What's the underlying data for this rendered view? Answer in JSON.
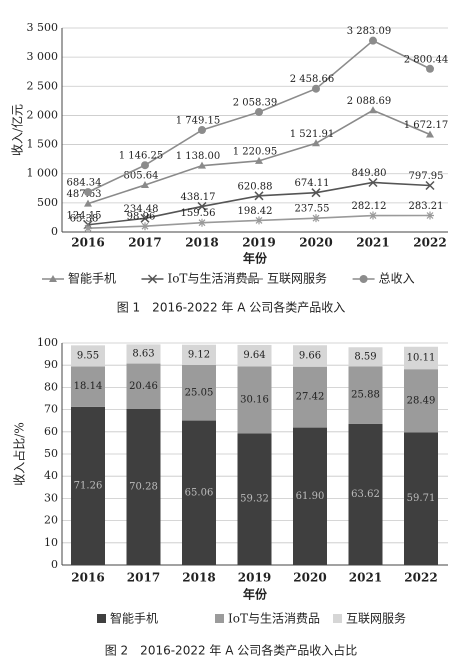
{
  "chart_data": [
    {
      "type": "line",
      "x_label": "年份",
      "y_label": "收入/亿元",
      "caption": "图 1　2016-2022 年 A 公司各类产品收入",
      "categories": [
        "2016",
        "2017",
        "2018",
        "2019",
        "2020",
        "2021",
        "2022"
      ],
      "ylim": [
        0,
        3500
      ],
      "yticks": [
        0,
        500,
        {
          "value": 1000,
          "label": "1 000"
        },
        {
          "value": 1500,
          "label": "1 500"
        },
        {
          "value": 2000,
          "label": "2 000"
        },
        {
          "value": 2500,
          "label": "2 500"
        },
        {
          "value": 3000,
          "label": "3 000"
        },
        {
          "value": 3500,
          "label": "3 500"
        }
      ],
      "series": [
        {
          "name": "智能手机",
          "color": "#8a8a8a",
          "marker": "triangle",
          "values": [
            487.63,
            805.64,
            1138.0,
            1220.95,
            1521.91,
            2088.69,
            1672.17
          ],
          "value_labels": [
            "487.63",
            "805.64",
            "1 138.00",
            "1 220.95",
            "1 521.91",
            "2 088.69",
            "1 672.17"
          ]
        },
        {
          "name": "IoT与生活消费品",
          "color": "#555555",
          "marker": "x",
          "values": [
            124.15,
            234.48,
            438.17,
            620.88,
            674.11,
            849.8,
            797.95
          ],
          "value_labels": [
            "124.15",
            "234.48",
            "438.17",
            "620.88",
            "674.11",
            "849.80",
            "797.95"
          ]
        },
        {
          "name": "互联网服务",
          "color": "#9a9a9a",
          "marker": "plus",
          "values": [
            65.38,
            98.96,
            159.56,
            198.42,
            237.55,
            282.12,
            283.21
          ],
          "value_labels": [
            "65.38",
            "98.96",
            "159.56",
            "198.42",
            "237.55",
            "282.12",
            "283.21"
          ]
        },
        {
          "name": "总收入",
          "color": "#8c8c8c",
          "marker": "circle",
          "values": [
            684.34,
            1146.25,
            1749.15,
            2058.39,
            2458.66,
            3283.09,
            2800.44
          ],
          "value_labels": [
            "684.34",
            "1 146.25",
            "1 749.15",
            "2 058.39",
            "2 458.66",
            "3 283.09",
            "2 800.44"
          ]
        }
      ]
    },
    {
      "type": "stacked_bar",
      "x_label": "年份",
      "y_label": "收入占比/%",
      "caption": "图 2　2016-2022 年 A 公司各类产品收入占比",
      "categories": [
        "2016",
        "2017",
        "2018",
        "2019",
        "2020",
        "2021",
        "2022"
      ],
      "ylim": [
        0,
        100
      ],
      "yticks": [
        0,
        10,
        20,
        30,
        40,
        50,
        60,
        70,
        80,
        90,
        100
      ],
      "series": [
        {
          "name": "智能手机",
          "color": "#3f3f3f",
          "values": [
            71.26,
            70.28,
            65.06,
            59.32,
            61.9,
            63.62,
            59.71
          ],
          "value_labels": [
            "71.26",
            "70.28",
            "65.06",
            "59.32",
            "61.90",
            "63.62",
            "59.71"
          ]
        },
        {
          "name": "IoT与生活消费品",
          "color": "#9b9b9b",
          "values": [
            18.14,
            20.46,
            25.05,
            30.16,
            27.42,
            25.88,
            28.49
          ]
        },
        {
          "name": "互联网服务",
          "color": "#d6d6d6",
          "values": [
            9.55,
            8.63,
            9.12,
            9.64,
            9.66,
            8.59,
            10.11
          ]
        }
      ]
    }
  ]
}
